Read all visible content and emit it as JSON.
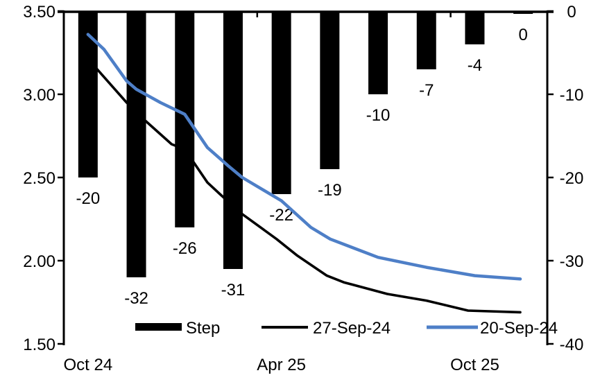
{
  "chart_data": {
    "type": "combo-bar-line",
    "title": "",
    "grid": "off",
    "legend_position": "bottom",
    "x_axis": {
      "n_categories": 10,
      "labels": [
        "Oct 24",
        "Apr 25",
        "Oct 25"
      ],
      "label_positions": [
        0,
        4,
        8
      ],
      "group_boundary_ticks": [
        4,
        8
      ]
    },
    "left_axis": {
      "min": 1.5,
      "max": 3.5,
      "tick_values": [
        3.5,
        3.0,
        2.5,
        2.0,
        1.5
      ],
      "tick_labels": [
        "3.50",
        "3.00",
        "2.50",
        "2.00",
        "1.50"
      ]
    },
    "right_axis": {
      "min": -40,
      "max": 0,
      "tick_values": [
        0,
        -10,
        -20,
        -30,
        -40
      ],
      "tick_labels": [
        "0",
        "-10",
        "-20",
        "-30",
        "-40"
      ]
    },
    "bar_series": {
      "name": "Step",
      "axis": "right",
      "color": "#000000",
      "values": [
        -20,
        -32,
        -26,
        -31,
        -22,
        -19,
        -10,
        -7,
        -4,
        0
      ],
      "data_labels": [
        "-20",
        "-32",
        "-26",
        "-31",
        "-22",
        "-19",
        "-10",
        "-7",
        "-4",
        "0"
      ]
    },
    "line_series": [
      {
        "name": "27-Sep-24",
        "axis": "left",
        "color": "#000000",
        "points": [
          [
            0,
            3.18
          ],
          [
            0.16,
            3.16
          ],
          [
            0.8,
            2.95
          ],
          [
            1.19,
            2.84
          ],
          [
            1.73,
            2.7
          ],
          [
            2,
            2.67
          ],
          [
            2.47,
            2.47
          ],
          [
            2.73,
            2.4
          ],
          [
            3.19,
            2.28
          ],
          [
            3.9,
            2.13
          ],
          [
            4.33,
            2.03
          ],
          [
            4.94,
            1.91
          ],
          [
            5.29,
            1.87
          ],
          [
            6.19,
            1.8
          ],
          [
            7,
            1.76
          ],
          [
            7.86,
            1.7
          ],
          [
            8.94,
            1.69
          ]
        ]
      },
      {
        "name": "20-Sep-24",
        "axis": "left",
        "color": "#4E7FC7",
        "points": [
          [
            0,
            3.36
          ],
          [
            0.33,
            3.27
          ],
          [
            0.8,
            3.08
          ],
          [
            1,
            3.03
          ],
          [
            1.5,
            2.95
          ],
          [
            2,
            2.88
          ],
          [
            2.47,
            2.68
          ],
          [
            2.9,
            2.57
          ],
          [
            3.19,
            2.5
          ],
          [
            4,
            2.36
          ],
          [
            4.61,
            2.2
          ],
          [
            5.01,
            2.13
          ],
          [
            6,
            2.02
          ],
          [
            7,
            1.96
          ],
          [
            8,
            1.91
          ],
          [
            8.94,
            1.89
          ]
        ]
      }
    ],
    "legend": {
      "items": [
        "Step",
        "27-Sep-24",
        "20-Sep-24"
      ]
    }
  }
}
